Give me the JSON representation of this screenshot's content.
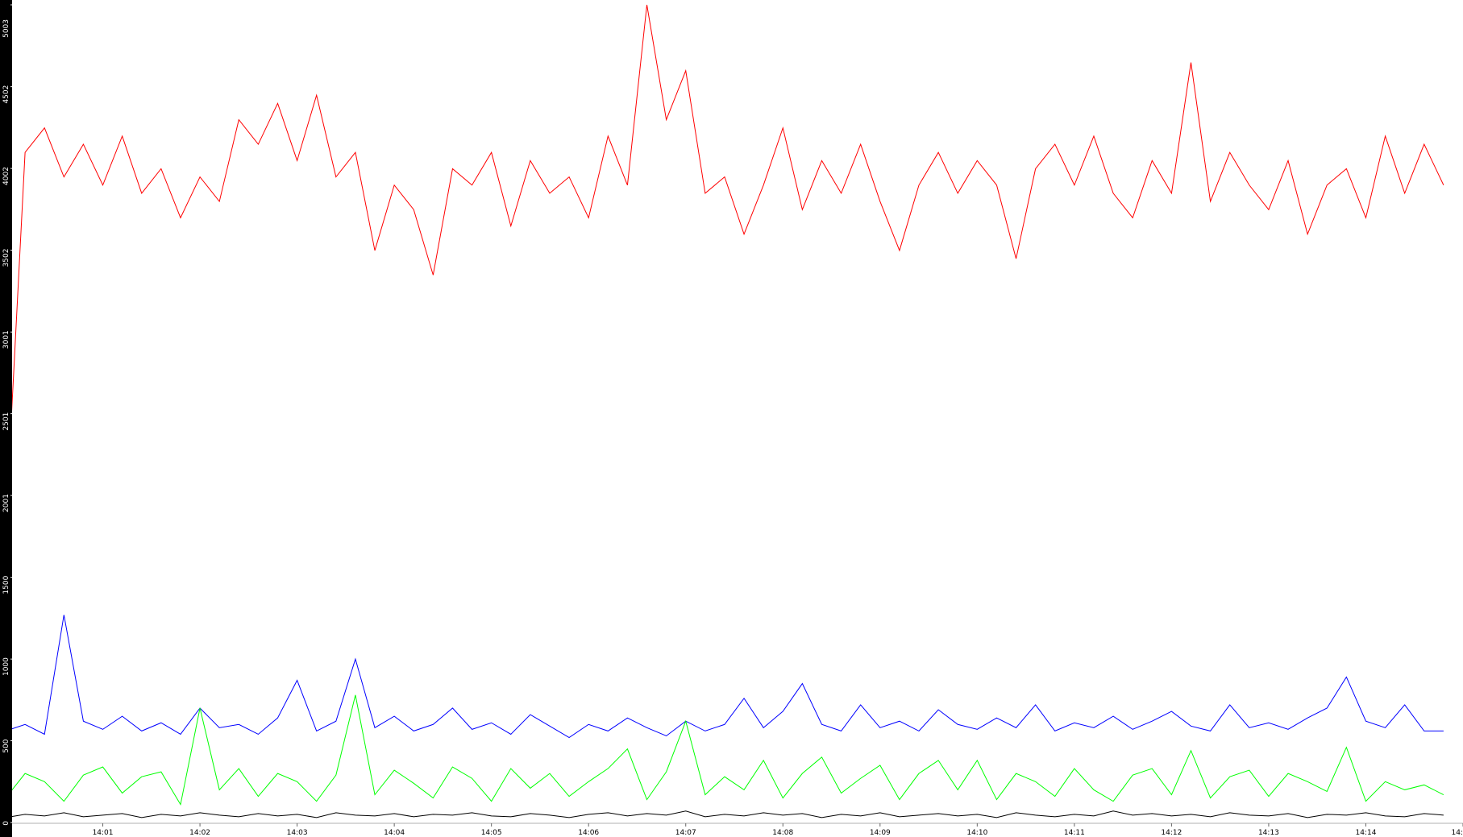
{
  "chart_data": {
    "type": "line",
    "x": [
      0,
      0.2,
      0.4,
      0.6,
      0.8,
      1,
      1.2,
      1.4,
      1.6,
      1.8,
      2,
      2.2,
      2.4,
      2.6,
      2.8,
      3,
      3.2,
      3.4,
      3.6,
      3.8,
      4,
      4.2,
      4.4,
      4.6,
      4.8,
      5,
      5.2,
      5.4,
      5.6,
      5.8,
      6,
      6.2,
      6.4,
      6.6,
      6.8,
      7,
      7.2,
      7.4,
      7.6,
      7.8,
      8,
      8.2,
      8.4,
      8.6,
      8.8,
      9,
      9.2,
      9.4,
      9.6,
      9.8,
      10,
      10.2,
      10.4,
      10.6,
      10.8,
      11,
      11.2,
      11.4,
      11.6,
      11.8,
      12,
      12.2,
      12.4,
      12.6,
      12.8,
      13,
      13.2,
      13.4,
      13.6,
      13.8,
      14,
      14.2,
      14.4,
      14.6,
      14.8
    ],
    "series": [
      {
        "color": "#ff0000",
        "values": [
          1800,
          4100,
          4250,
          3950,
          4150,
          3900,
          4200,
          3850,
          4000,
          3700,
          3950,
          3800,
          4300,
          4150,
          4400,
          4050,
          4450,
          3950,
          4100,
          3500,
          3900,
          3750,
          3350,
          4000,
          3900,
          4100,
          3650,
          4050,
          3850,
          3950,
          3700,
          4200,
          3900,
          5003,
          4300,
          4600,
          3850,
          3950,
          3600,
          3900,
          4250,
          3750,
          4050,
          3850,
          4150,
          3800,
          3500,
          3900,
          4100,
          3850,
          4050,
          3900,
          3450,
          4000,
          4150,
          3900,
          4200,
          3850,
          3700,
          4050,
          3850,
          4650,
          3800,
          4100,
          3900,
          3750,
          4050,
          3600,
          3900,
          4000,
          3700,
          4200,
          3850,
          4150,
          3900
        ]
      },
      {
        "color": "#0000ff",
        "values": [
          560,
          600,
          540,
          1270,
          620,
          570,
          650,
          560,
          610,
          540,
          700,
          580,
          600,
          540,
          640,
          870,
          560,
          620,
          1000,
          580,
          650,
          560,
          600,
          700,
          570,
          610,
          540,
          660,
          590,
          520,
          600,
          560,
          640,
          580,
          530,
          620,
          560,
          600,
          760,
          580,
          680,
          850,
          600,
          560,
          720,
          580,
          620,
          560,
          690,
          600,
          570,
          640,
          580,
          720,
          560,
          610,
          580,
          650,
          570,
          620,
          680,
          590,
          560,
          720,
          580,
          610,
          570,
          640,
          700,
          890,
          620,
          580,
          720,
          560,
          560
        ]
      },
      {
        "color": "#00ff00",
        "values": [
          150,
          300,
          250,
          130,
          290,
          340,
          180,
          280,
          310,
          110,
          700,
          200,
          330,
          160,
          300,
          250,
          130,
          290,
          780,
          170,
          320,
          240,
          150,
          340,
          270,
          130,
          330,
          210,
          300,
          160,
          250,
          330,
          450,
          140,
          310,
          620,
          170,
          280,
          200,
          380,
          150,
          300,
          400,
          180,
          270,
          350,
          140,
          300,
          380,
          200,
          380,
          140,
          300,
          250,
          160,
          330,
          200,
          130,
          290,
          330,
          170,
          440,
          150,
          280,
          320,
          160,
          300,
          250,
          190,
          460,
          130,
          250,
          200,
          230,
          170
        ]
      },
      {
        "color": "#000000",
        "values": [
          30,
          50,
          40,
          60,
          35,
          45,
          55,
          30,
          50,
          40,
          60,
          45,
          35,
          55,
          40,
          50,
          30,
          60,
          45,
          40,
          55,
          35,
          50,
          45,
          60,
          40,
          35,
          55,
          45,
          30,
          50,
          60,
          40,
          55,
          45,
          70,
          35,
          50,
          40,
          60,
          45,
          55,
          30,
          50,
          40,
          60,
          35,
          45,
          55,
          40,
          50,
          30,
          60,
          45,
          35,
          50,
          40,
          70,
          45,
          55,
          40,
          50,
          35,
          60,
          45,
          40,
          55,
          30,
          50,
          45,
          60,
          40,
          35,
          55,
          45
        ]
      }
    ],
    "xlim": [
      0,
      15
    ],
    "xticks": [
      {
        "value": 1,
        "label": "14:01"
      },
      {
        "value": 2,
        "label": "14:02"
      },
      {
        "value": 3,
        "label": "14:03"
      },
      {
        "value": 4,
        "label": "14:04"
      },
      {
        "value": 5,
        "label": "14:05"
      },
      {
        "value": 6,
        "label": "14:06"
      },
      {
        "value": 7,
        "label": "14:07"
      },
      {
        "value": 8,
        "label": "14:08"
      },
      {
        "value": 9,
        "label": "14:09"
      },
      {
        "value": 10,
        "label": "14:10"
      },
      {
        "value": 11,
        "label": "14:11"
      },
      {
        "value": 12,
        "label": "14:12"
      },
      {
        "value": 13,
        "label": "14:13"
      },
      {
        "value": 14,
        "label": "14:14"
      },
      {
        "value": 15,
        "label": "14:"
      }
    ],
    "ylim": [
      0,
      5003
    ],
    "yticks": [
      0,
      500,
      1000,
      1500,
      2001,
      2501,
      3001,
      3502,
      4002,
      4502,
      5003
    ],
    "grid": false
  }
}
